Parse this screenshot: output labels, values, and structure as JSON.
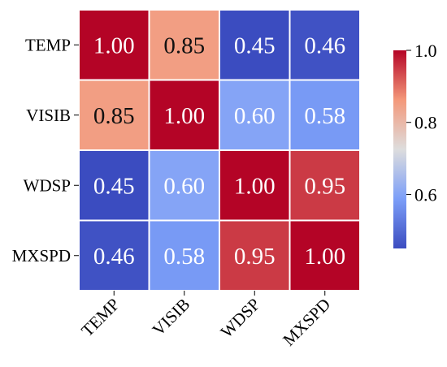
{
  "chart_data": {
    "type": "heatmap",
    "title": "",
    "xlabel": "",
    "ylabel": "",
    "x_categories": [
      "TEMP",
      "VISIB",
      "WDSP",
      "MXSPD"
    ],
    "y_categories": [
      "TEMP",
      "VISIB",
      "WDSP",
      "MXSPD"
    ],
    "values": [
      [
        1.0,
        0.85,
        0.45,
        0.46
      ],
      [
        0.85,
        1.0,
        0.6,
        0.58
      ],
      [
        0.45,
        0.6,
        1.0,
        0.95
      ],
      [
        0.46,
        0.58,
        0.95,
        1.0
      ]
    ],
    "value_labels": [
      [
        "1.00",
        "0.85",
        "0.45",
        "0.46"
      ],
      [
        "0.85",
        "1.00",
        "0.60",
        "0.58"
      ],
      [
        "0.45",
        "0.60",
        "1.00",
        "0.95"
      ],
      [
        "0.46",
        "0.58",
        "0.95",
        "1.00"
      ]
    ],
    "colormap": "coolwarm",
    "vmin": 0.45,
    "vmax": 1.0,
    "cell_border_color": "#ffffff",
    "colorbar": {
      "ticks": [
        0.6,
        0.8,
        1.0
      ],
      "tick_labels": [
        "0.6",
        "0.8",
        "1.0"
      ]
    }
  }
}
